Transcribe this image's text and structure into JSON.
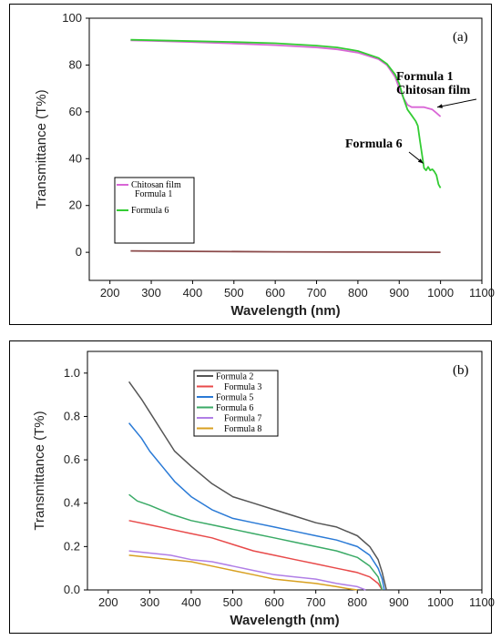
{
  "chart_data": [
    {
      "type": "line",
      "panel_label": "(a)",
      "xlabel": "Wavelength (nm)",
      "ylabel": "Transmittance (T%)",
      "xlim": [
        150,
        1100
      ],
      "ylim": [
        -12,
        100
      ],
      "xticks": [
        200,
        300,
        400,
        500,
        600,
        700,
        800,
        900,
        1000,
        1100
      ],
      "yticks": [
        0,
        20,
        40,
        60,
        80,
        100
      ],
      "grid": false,
      "legend_position": "lower-left",
      "series": [
        {
          "name": "Chitosan film",
          "color": "#d966d6",
          "x": [
            250,
            300,
            400,
            500,
            600,
            700,
            750,
            800,
            850,
            870,
            890,
            900,
            910,
            920,
            930,
            940,
            960,
            980,
            990,
            1000
          ],
          "y": [
            90.5,
            90.3,
            89.8,
            89.2,
            88.5,
            87.5,
            86.7,
            85.3,
            82.5,
            80.0,
            75.0,
            70.0,
            66.0,
            63.0,
            62.0,
            62.0,
            62.0,
            61.0,
            59.5,
            58.0
          ]
        },
        {
          "name": "Formula 1",
          "color": "#8b4a4a",
          "x": [
            250,
            400,
            600,
            800,
            1000
          ],
          "y": [
            0.6,
            0.4,
            0.2,
            0.1,
            0.0
          ]
        },
        {
          "name": "Formula 6",
          "color": "#33cc33",
          "x": [
            250,
            300,
            400,
            500,
            600,
            700,
            750,
            800,
            850,
            870,
            890,
            900,
            910,
            920,
            930,
            940,
            945,
            950,
            955,
            960,
            965,
            970,
            975,
            980,
            985,
            990,
            995,
            1000
          ],
          "y": [
            90.8,
            90.6,
            90.2,
            89.8,
            89.3,
            88.3,
            87.5,
            86.0,
            83.0,
            80.5,
            76.0,
            72.0,
            66.0,
            61.0,
            58.5,
            56.0,
            54.0,
            48.0,
            42.0,
            36.0,
            35.0,
            36.5,
            35.0,
            35.5,
            34.5,
            33.0,
            29.0,
            27.5
          ]
        }
      ],
      "annotations": [
        {
          "text": "Formula 1",
          "target": [
            1000,
            60
          ]
        },
        {
          "text": "Chitosan film",
          "target": [
            1000,
            60
          ]
        },
        {
          "text": "Formula 6",
          "target": [
            960,
            37
          ]
        }
      ]
    },
    {
      "type": "line",
      "panel_label": "(b)",
      "xlabel": "Wavelength (nm)",
      "ylabel": "Transmittance (T%)",
      "xlim": [
        150,
        1100
      ],
      "ylim": [
        0,
        1.1
      ],
      "xticks": [
        200,
        300,
        400,
        500,
        600,
        700,
        800,
        900,
        1000,
        1100
      ],
      "yticks": [
        0.0,
        0.2,
        0.4,
        0.6,
        0.8,
        1.0
      ],
      "grid": false,
      "legend_position": "top-center",
      "series": [
        {
          "name": "Formula 2",
          "color": "#555555",
          "x": [
            250,
            280,
            300,
            330,
            360,
            400,
            450,
            500,
            550,
            600,
            650,
            700,
            750,
            800,
            830,
            850,
            860,
            870
          ],
          "y": [
            0.96,
            0.88,
            0.82,
            0.73,
            0.64,
            0.57,
            0.49,
            0.43,
            0.4,
            0.37,
            0.34,
            0.31,
            0.29,
            0.25,
            0.2,
            0.14,
            0.08,
            0.0
          ]
        },
        {
          "name": "Formula 3",
          "color": "#e84a4a",
          "x": [
            250,
            300,
            350,
            400,
            450,
            500,
            550,
            600,
            650,
            700,
            750,
            800,
            830,
            850,
            860
          ],
          "y": [
            0.32,
            0.3,
            0.28,
            0.26,
            0.24,
            0.21,
            0.18,
            0.16,
            0.14,
            0.12,
            0.1,
            0.08,
            0.06,
            0.03,
            0.0
          ]
        },
        {
          "name": "Formula 5",
          "color": "#2a7ad6",
          "x": [
            250,
            280,
            300,
            330,
            360,
            400,
            450,
            500,
            550,
            600,
            650,
            700,
            750,
            800,
            830,
            850,
            860,
            865
          ],
          "y": [
            0.77,
            0.7,
            0.64,
            0.57,
            0.5,
            0.43,
            0.37,
            0.33,
            0.31,
            0.29,
            0.27,
            0.25,
            0.23,
            0.2,
            0.16,
            0.1,
            0.05,
            0.0
          ]
        },
        {
          "name": "Formula 6",
          "color": "#3aaa66",
          "x": [
            250,
            270,
            300,
            350,
            400,
            450,
            500,
            550,
            600,
            650,
            700,
            750,
            800,
            830,
            850,
            860
          ],
          "y": [
            0.44,
            0.41,
            0.39,
            0.35,
            0.32,
            0.3,
            0.28,
            0.26,
            0.24,
            0.22,
            0.2,
            0.18,
            0.15,
            0.11,
            0.06,
            0.0
          ]
        },
        {
          "name": "Formula 7",
          "color": "#b07ee6",
          "x": [
            250,
            300,
            350,
            400,
            450,
            500,
            550,
            600,
            650,
            700,
            750,
            800,
            820
          ],
          "y": [
            0.18,
            0.17,
            0.16,
            0.14,
            0.13,
            0.11,
            0.09,
            0.07,
            0.06,
            0.05,
            0.03,
            0.015,
            0.0
          ]
        },
        {
          "name": "Formula 8",
          "color": "#d8a020",
          "x": [
            250,
            300,
            350,
            400,
            450,
            500,
            550,
            600,
            650,
            700,
            750,
            780,
            800
          ],
          "y": [
            0.16,
            0.15,
            0.14,
            0.13,
            0.11,
            0.09,
            0.07,
            0.05,
            0.04,
            0.03,
            0.015,
            0.005,
            0.0
          ]
        }
      ]
    }
  ]
}
